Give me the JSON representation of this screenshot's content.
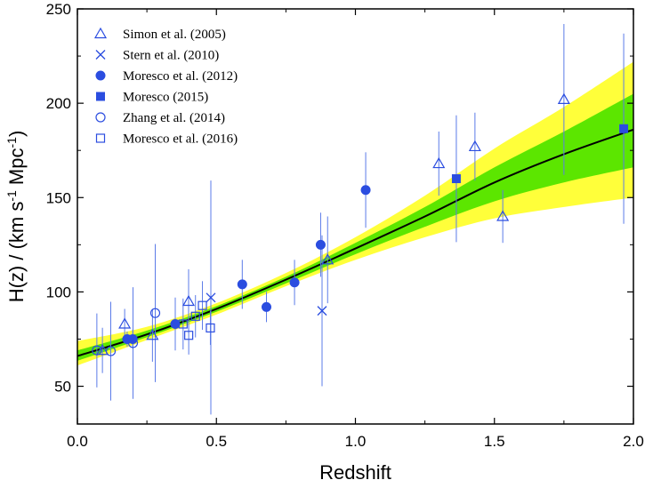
{
  "chart_data": {
    "type": "scatter",
    "title": "",
    "xlabel": "Redshift",
    "ylabel": "H(z) / (km s-1 Mpc-1)",
    "ylabel_parts": {
      "main": "H(z) / (km s",
      "exp1": "-1",
      "mid": " Mpc",
      "exp2": "-1",
      "end": ")"
    },
    "xlim": [
      0.0,
      2.0
    ],
    "ylim": [
      30,
      250
    ],
    "x_ticks": [
      0.0,
      0.5,
      1.0,
      1.5,
      2.0
    ],
    "x_tick_labels": [
      "0.0",
      "0.5",
      "1.0",
      "1.5",
      "2.0"
    ],
    "y_ticks": [
      50,
      100,
      150,
      200,
      250
    ],
    "y_tick_labels": [
      "50",
      "100",
      "150",
      "200",
      "250"
    ],
    "grid": false,
    "legend_position": "top-left",
    "colors": {
      "points": "#2b4de0",
      "errorbars": "#5b7be8",
      "band_outer": "#ffff3a",
      "band_inner": "#5ce600",
      "fit": "#000000"
    },
    "bands": {
      "x": [
        0.0,
        0.25,
        0.5,
        0.75,
        1.0,
        1.25,
        1.5,
        1.75,
        2.0
      ],
      "center": [
        66,
        77.5,
        91,
        106.5,
        123,
        140,
        158,
        173,
        186
      ],
      "inner_low": [
        63.5,
        76,
        89.5,
        104.5,
        120,
        134.5,
        148,
        158,
        166
      ],
      "inner_high": [
        69,
        79.5,
        92.5,
        108,
        126,
        145,
        166,
        185,
        205
      ],
      "outer_low": [
        61,
        74.5,
        88,
        103,
        117,
        129,
        139,
        145,
        150
      ],
      "outer_high": [
        74,
        81.5,
        94,
        110,
        129,
        151,
        176,
        198,
        222
      ]
    },
    "series": [
      {
        "name": "Simon et al. (2005)",
        "marker": "triangle-open",
        "points": [
          {
            "x": 0.09,
            "y": 69,
            "err": 12
          },
          {
            "x": 0.17,
            "y": 83,
            "err": 8
          },
          {
            "x": 0.27,
            "y": 77,
            "err": 14
          },
          {
            "x": 0.4,
            "y": 95,
            "err": 17
          },
          {
            "x": 0.9,
            "y": 117,
            "err": 23
          },
          {
            "x": 1.3,
            "y": 168,
            "err": 17
          },
          {
            "x": 1.43,
            "y": 177,
            "err": 18
          },
          {
            "x": 1.53,
            "y": 140,
            "err": 14
          },
          {
            "x": 1.75,
            "y": 202,
            "err": 40
          }
        ]
      },
      {
        "name": "Stern et al. (2010)",
        "marker": "cross",
        "points": [
          {
            "x": 0.48,
            "y": 97,
            "err": 62
          },
          {
            "x": 0.88,
            "y": 90,
            "err": 40
          }
        ]
      },
      {
        "name": "Moresco et al. (2012)",
        "marker": "circle-filled",
        "points": [
          {
            "x": 0.179,
            "y": 75,
            "err": 4
          },
          {
            "x": 0.199,
            "y": 75,
            "err": 5
          },
          {
            "x": 0.352,
            "y": 83,
            "err": 14
          },
          {
            "x": 0.593,
            "y": 104,
            "err": 13
          },
          {
            "x": 0.68,
            "y": 92,
            "err": 8
          },
          {
            "x": 0.781,
            "y": 105,
            "err": 12
          },
          {
            "x": 0.875,
            "y": 125,
            "err": 17
          },
          {
            "x": 1.037,
            "y": 154,
            "err": 20
          }
        ]
      },
      {
        "name": "Moresco (2015)",
        "marker": "square-filled",
        "points": [
          {
            "x": 1.363,
            "y": 160,
            "err": 33.6
          },
          {
            "x": 1.965,
            "y": 186.5,
            "err": 50.4
          }
        ]
      },
      {
        "name": "Zhang et al. (2014)",
        "marker": "circle-open",
        "points": [
          {
            "x": 0.07,
            "y": 69,
            "err": 19.6
          },
          {
            "x": 0.12,
            "y": 68.6,
            "err": 26.2
          },
          {
            "x": 0.2,
            "y": 72.9,
            "err": 29.6
          },
          {
            "x": 0.28,
            "y": 88.8,
            "err": 36.6
          }
        ]
      },
      {
        "name": "Moresco et al. (2016)",
        "marker": "square-open",
        "points": [
          {
            "x": 0.3802,
            "y": 83,
            "err": 13.5
          },
          {
            "x": 0.4004,
            "y": 77,
            "err": 10.2
          },
          {
            "x": 0.4247,
            "y": 87.1,
            "err": 11.2
          },
          {
            "x": 0.4497,
            "y": 92.8,
            "err": 12.9
          },
          {
            "x": 0.4783,
            "y": 80.9,
            "err": 9
          }
        ]
      }
    ]
  }
}
